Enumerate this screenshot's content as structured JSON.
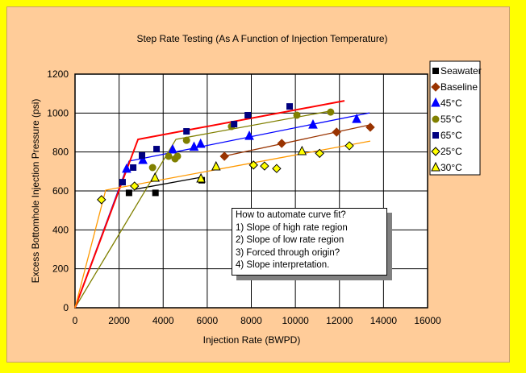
{
  "chart_data": {
    "type": "scatter",
    "title": "Step Rate Testing (As A Function of Injection Temperature)",
    "xlabel": "Injection Rate (BWPD)",
    "ylabel": "Excess Bottomhole Injection Pressure (psi)",
    "xlim": [
      0,
      16000
    ],
    "ylim": [
      0,
      1200
    ],
    "xticks": [
      0,
      2000,
      4000,
      6000,
      8000,
      10000,
      12000,
      14000,
      16000
    ],
    "yticks": [
      0,
      200,
      400,
      600,
      800,
      1000,
      1200
    ],
    "grid": true,
    "legend": "right",
    "series": [
      {
        "name": "Seawater",
        "marker": "square",
        "color": "#000000",
        "points": [
          [
            2450,
            590
          ],
          [
            3650,
            590
          ],
          [
            5750,
            655
          ]
        ],
        "fit": [
          [
            2700,
            608
          ],
          [
            5700,
            670
          ]
        ]
      },
      {
        "name": "Baseline",
        "marker": "diamond",
        "color": "#993300",
        "points": [
          [
            6780,
            778
          ],
          [
            9380,
            844
          ],
          [
            11870,
            902
          ],
          [
            13400,
            927
          ]
        ],
        "fit": [
          [
            6740,
            778
          ],
          [
            13400,
            940
          ]
        ]
      },
      {
        "name": "45°C",
        "marker": "triangle",
        "color": "#0000ff",
        "points": [
          [
            2340,
            712
          ],
          [
            3080,
            757
          ],
          [
            4430,
            811
          ],
          [
            5400,
            825
          ],
          [
            5700,
            840
          ],
          [
            7910,
            881
          ],
          [
            10800,
            939
          ],
          [
            12780,
            968
          ]
        ],
        "fit": [
          [
            0,
            0
          ],
          [
            2450,
            753
          ],
          [
            13370,
            1001
          ]
        ]
      },
      {
        "name": "55°C",
        "marker": "circle",
        "color": "#808000",
        "points": [
          [
            3520,
            720
          ],
          [
            4250,
            778
          ],
          [
            4540,
            765
          ],
          [
            4650,
            778
          ],
          [
            5060,
            860
          ],
          [
            7100,
            931
          ],
          [
            10070,
            989
          ],
          [
            11600,
            1005
          ]
        ],
        "fit": [
          [
            0,
            0
          ],
          [
            4580,
            865
          ],
          [
            11720,
            1013
          ]
        ]
      },
      {
        "name": "65°C",
        "marker": "square",
        "color": "#000080",
        "points": [
          [
            2160,
            645
          ],
          [
            2640,
            720
          ],
          [
            3040,
            782
          ],
          [
            3700,
            815
          ],
          [
            5060,
            906
          ],
          [
            7220,
            943
          ],
          [
            7840,
            989
          ],
          [
            9740,
            1034
          ]
        ],
        "fit": [
          [
            0,
            0
          ],
          [
            2860,
            865
          ],
          [
            12230,
            1063
          ]
        ],
        "fit_color": "#ff0000"
      },
      {
        "name": "25°C",
        "marker": "diamond",
        "color": "#ffff00",
        "points": [
          [
            1200,
            555
          ],
          [
            2700,
            625
          ],
          [
            8100,
            733
          ],
          [
            8600,
            728
          ],
          [
            9150,
            715
          ],
          [
            11100,
            793
          ],
          [
            12450,
            832
          ]
        ],
        "fit": [
          [
            0,
            0
          ],
          [
            1390,
            604
          ],
          [
            13400,
            856
          ]
        ],
        "fit_color": "#ff9900"
      },
      {
        "name": "30°C",
        "marker": "triangle",
        "color": "#ffff00",
        "points": [
          [
            3630,
            666
          ],
          [
            5715,
            662
          ],
          [
            6400,
            724
          ],
          [
            10300,
            803
          ]
        ]
      }
    ],
    "annotation": [
      "How to automate curve fit?",
      "1) Slope of high rate region",
      "2) Slope of low rate region",
      "3) Forced through origin?",
      "4) Slope interpretation."
    ]
  }
}
